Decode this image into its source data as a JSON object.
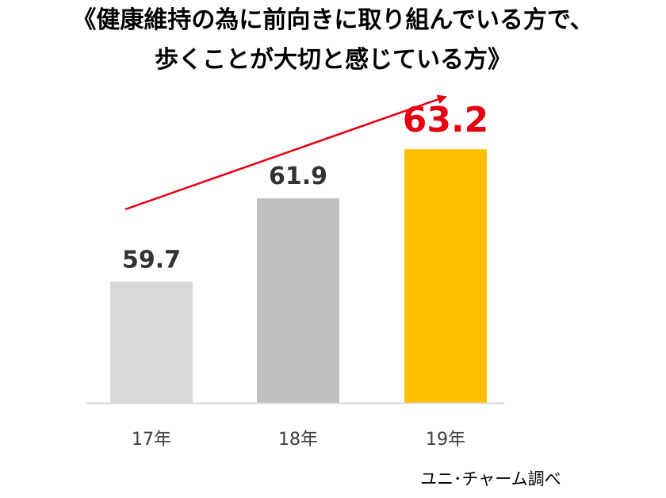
{
  "title": {
    "line1": "《健康維持の為に前向きに取り組んでいる方で、",
    "line2": "歩くことが大切と感じている方》"
  },
  "source": "ユニ･チャーム調べ",
  "colors": {
    "bar_17": "#d9d9d9",
    "bar_18": "#bfbfbf",
    "bar_19": "#ffc000",
    "label_default": "#333333",
    "label_highlight": "#e60012",
    "trend_arrow": "#e60012",
    "axis": "#d9d9d9",
    "tick_text": "#404040"
  },
  "chart_data": {
    "type": "bar",
    "categories": [
      "17年",
      "18年",
      "19年"
    ],
    "values": [
      59.7,
      61.9,
      63.2
    ],
    "value_labels": [
      "59.7",
      "61.9",
      "63.2"
    ],
    "highlight_index": 2,
    "ylim": [
      56.5,
      64.0
    ],
    "grid": false,
    "legend": "none",
    "trend_arrow": "rising"
  }
}
